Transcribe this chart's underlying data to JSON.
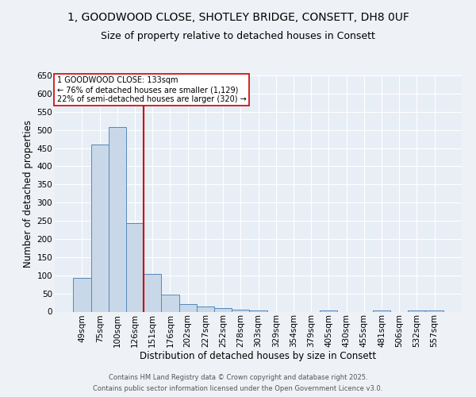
{
  "title_line1": "1, GOODWOOD CLOSE, SHOTLEY BRIDGE, CONSETT, DH8 0UF",
  "title_line2": "Size of property relative to detached houses in Consett",
  "categories": [
    "49sqm",
    "75sqm",
    "100sqm",
    "126sqm",
    "151sqm",
    "176sqm",
    "202sqm",
    "227sqm",
    "252sqm",
    "278sqm",
    "303sqm",
    "329sqm",
    "354sqm",
    "379sqm",
    "405sqm",
    "430sqm",
    "455sqm",
    "481sqm",
    "506sqm",
    "532sqm",
    "557sqm"
  ],
  "values": [
    92,
    460,
    507,
    243,
    104,
    46,
    20,
    15,
    10,
    5,
    4,
    0,
    0,
    0,
    3,
    0,
    0,
    3,
    0,
    3,
    3
  ],
  "bar_color": "#c8d8e8",
  "bar_edge_color": "#5588bb",
  "vline_x_index": 3,
  "vline_color": "#cc0000",
  "xlabel": "Distribution of detached houses by size in Consett",
  "ylabel": "Number of detached properties",
  "ylim": [
    0,
    650
  ],
  "yticks": [
    0,
    50,
    100,
    150,
    200,
    250,
    300,
    350,
    400,
    450,
    500,
    550,
    600,
    650
  ],
  "annotation_title": "1 GOODWOOD CLOSE: 133sqm",
  "annotation_line1": "← 76% of detached houses are smaller (1,129)",
  "annotation_line2": "22% of semi-detached houses are larger (320) →",
  "annotation_box_color": "#ffffff",
  "annotation_edge_color": "#cc0000",
  "footer_line1": "Contains HM Land Registry data © Crown copyright and database right 2025.",
  "footer_line2": "Contains public sector information licensed under the Open Government Licence v3.0.",
  "background_color": "#eef2f7",
  "plot_bg_color": "#e8eef6",
  "grid_color": "#ffffff",
  "title_fontsize": 10,
  "subtitle_fontsize": 9,
  "tick_fontsize": 7.5,
  "label_fontsize": 8.5,
  "footer_fontsize": 6,
  "ann_fontsize": 7
}
